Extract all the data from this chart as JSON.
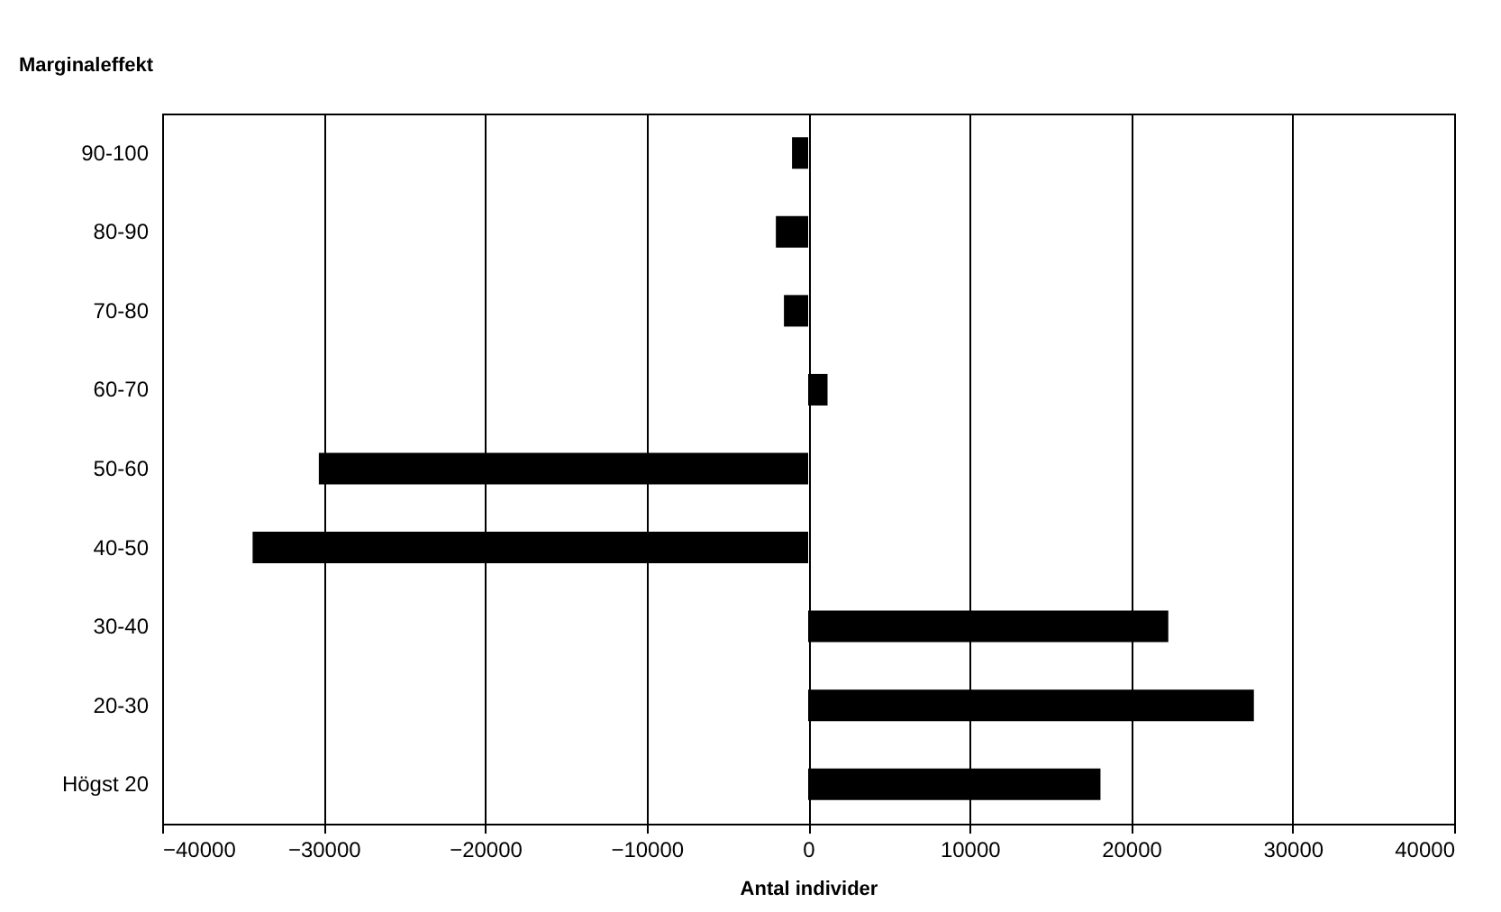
{
  "chart_data": {
    "type": "bar",
    "orientation": "horizontal",
    "ylabel": "Marginaleffekt",
    "xlabel": "Antal individer",
    "categories": [
      "90-100",
      "80-90",
      "70-80",
      "60-70",
      "50-60",
      "40-50",
      "30-40",
      "20-30",
      "Högst 20"
    ],
    "values": [
      -1000,
      -2000,
      -1500,
      1200,
      -30300,
      -34400,
      22300,
      27600,
      18100
    ],
    "color": "#000000",
    "xlim": [
      -40000,
      40000
    ],
    "xticks": [
      -40000,
      -30000,
      -20000,
      -10000,
      0,
      10000,
      20000,
      30000,
      40000
    ],
    "grid": "x"
  }
}
